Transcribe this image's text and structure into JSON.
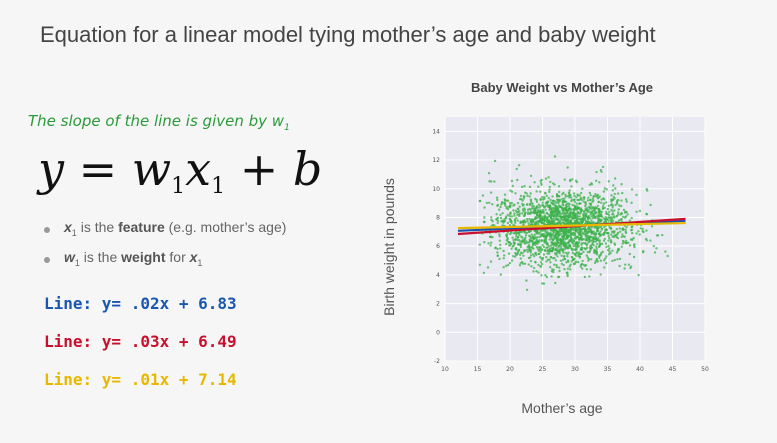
{
  "slide": {
    "title": "Equation for a linear model tying mother’s age and baby weight",
    "note_prefix": "The slope of the line is given by w",
    "note_subscript": "1",
    "equation": {
      "y": "y",
      "eq": " = ",
      "w": "w",
      "w_sub": "1",
      "x": "x",
      "x_sub": "1",
      "plus": " + ",
      "b": "b"
    },
    "bullets": [
      {
        "var": "x",
        "sub": "1",
        "pre": " is the ",
        "strong": "feature",
        "post": " (e.g. mother’s age)"
      },
      {
        "var": "w",
        "sub": "1",
        "pre": " is the ",
        "strong": "weight",
        "post": " for ",
        "var2": "x",
        "sub2": "1"
      }
    ],
    "line_equations": [
      {
        "text": "Line: y= .02x + 6.83",
        "color": "#1a56b0"
      },
      {
        "text": "Line: y= .03x + 6.49",
        "color": "#c8102e"
      },
      {
        "text": "Line: y= .01x + 7.14",
        "color": "#e8b800"
      }
    ]
  },
  "chart_data": {
    "type": "scatter",
    "title": "Baby Weight vs Mother’s Age",
    "xlabel": "Mother’s age",
    "ylabel": "Birth weight in pounds",
    "xlim": [
      10,
      50
    ],
    "ylim": [
      -2,
      15
    ],
    "xticks": [
      10,
      15,
      20,
      25,
      30,
      35,
      40,
      45,
      50
    ],
    "yticks": [
      -2,
      0,
      2,
      4,
      6,
      8,
      10,
      12,
      14
    ],
    "grid": true,
    "point_color": "#3cb24b",
    "background": "#e9e9f2",
    "point_cloud": {
      "x_range": [
        15,
        45
      ],
      "x_center": 28,
      "y_center": 7.3,
      "y_spread": 1.3
    },
    "series": [
      {
        "slope": 0.02,
        "intercept": 6.83,
        "color": "#1a56b0"
      },
      {
        "slope": 0.03,
        "intercept": 6.49,
        "color": "#c8102e"
      },
      {
        "slope": 0.01,
        "intercept": 7.14,
        "color": "#e8b800"
      }
    ]
  }
}
